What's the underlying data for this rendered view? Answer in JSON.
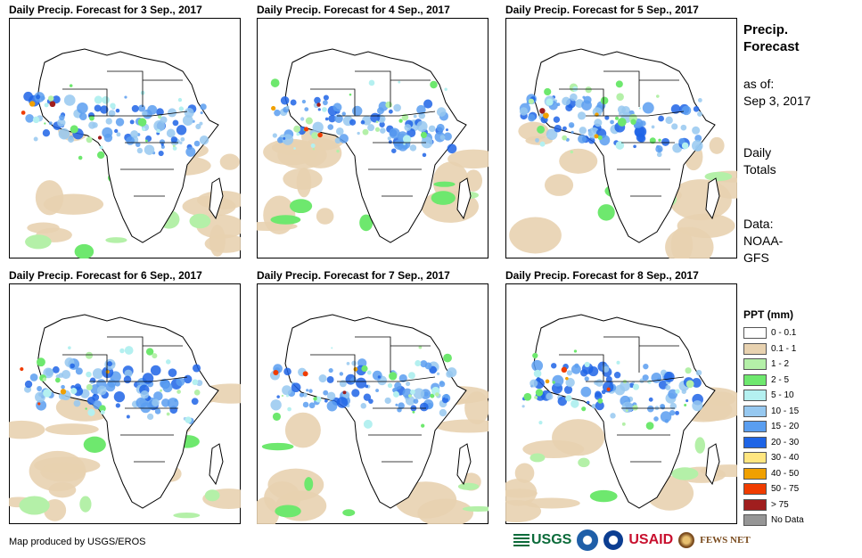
{
  "panels": [
    {
      "title": "Daily Precip. Forecast for 3 Sep., 2017"
    },
    {
      "title": "Daily Precip. Forecast for 4 Sep., 2017"
    },
    {
      "title": "Daily Precip. Forecast for 5 Sep., 2017"
    },
    {
      "title": "Daily Precip. Forecast for 6 Sep., 2017"
    },
    {
      "title": "Daily Precip. Forecast for 7 Sep., 2017"
    },
    {
      "title": "Daily Precip. Forecast for 8 Sep., 2017"
    }
  ],
  "sidebar": {
    "title_line1": "Precip.",
    "title_line2": "Forecast",
    "asof_label": "as of:",
    "asof_date": "Sep 3, 2017",
    "totals_line1": "Daily",
    "totals_line2": "Totals",
    "data_line1": "Data:",
    "data_line2": "NOAA-",
    "data_line3": "GFS"
  },
  "legend": {
    "title": "PPT (mm)",
    "items": [
      {
        "label": "0 - 0.1",
        "color": "#ffffff"
      },
      {
        "label": "0.1 - 1",
        "color": "#e8d2b0"
      },
      {
        "label": "1 - 2",
        "color": "#b4f0a8"
      },
      {
        "label": "2 - 5",
        "color": "#6ee86e"
      },
      {
        "label": "5 - 10",
        "color": "#b4f0f0"
      },
      {
        "label": "10 - 15",
        "color": "#96c8f0"
      },
      {
        "label": "15 - 20",
        "color": "#5a9ef0"
      },
      {
        "label": "20 - 30",
        "color": "#1e64e6"
      },
      {
        "label": "30 - 40",
        "color": "#ffe680"
      },
      {
        "label": "40 - 50",
        "color": "#f0a000"
      },
      {
        "label": "50 - 75",
        "color": "#f03c00"
      },
      {
        "label": "> 75",
        "color": "#a01e1e"
      },
      {
        "label": "No Data",
        "color": "#969696"
      }
    ]
  },
  "footer": {
    "credit": "Map produced by USGS/EROS",
    "logo_usgs": "USGS",
    "logo_usaid": "USAID",
    "logo_fews": "FEWS NET"
  }
}
